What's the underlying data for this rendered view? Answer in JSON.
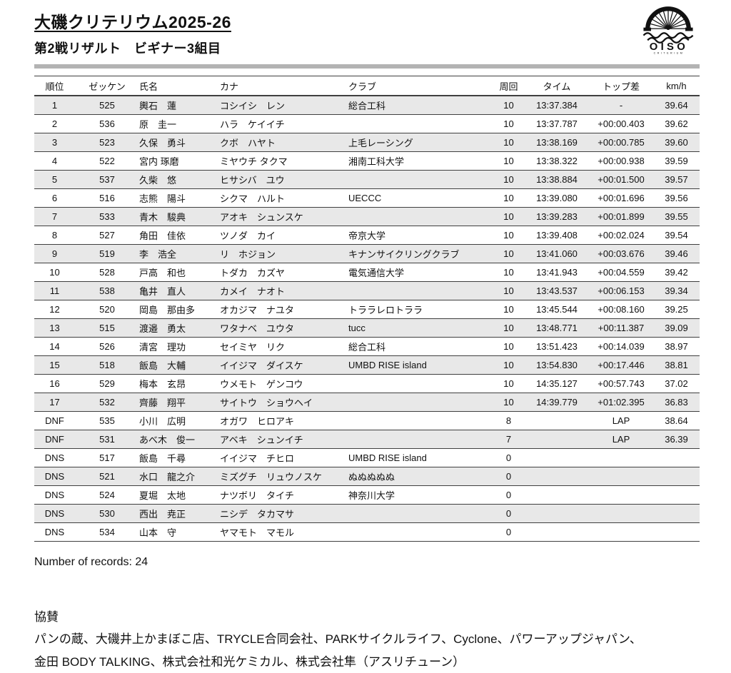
{
  "header": {
    "title": "大磯クリテリウム2025-26",
    "subtitle": "第2戦リザルト　ビギナー3組目"
  },
  "logo": {
    "name": "OISO",
    "subtext": "CRITERIUM"
  },
  "table": {
    "columns": [
      "順位",
      "ゼッケン",
      "氏名",
      "カナ",
      "クラブ",
      "周回",
      "タイム",
      "トップ差",
      "km/h"
    ],
    "rows": [
      {
        "rank": "1",
        "bib": "525",
        "name": "輿石　蓮",
        "kana": "コシイシ　レン",
        "club": "総合工科",
        "laps": "10",
        "time": "13:37.384",
        "gap": "-",
        "kmh": "39.64"
      },
      {
        "rank": "2",
        "bib": "536",
        "name": "原　圭一",
        "kana": "ハラ　ケイイチ",
        "club": "",
        "laps": "10",
        "time": "13:37.787",
        "gap": "+00:00.403",
        "kmh": "39.62"
      },
      {
        "rank": "3",
        "bib": "523",
        "name": "久保　勇斗",
        "kana": "クボ　ハヤト",
        "club": "上毛レーシング",
        "laps": "10",
        "time": "13:38.169",
        "gap": "+00:00.785",
        "kmh": "39.60"
      },
      {
        "rank": "4",
        "bib": "522",
        "name": "宮内 琢磨",
        "kana": "ミヤウチ タクマ",
        "club": "湘南工科大学",
        "laps": "10",
        "time": "13:38.322",
        "gap": "+00:00.938",
        "kmh": "39.59"
      },
      {
        "rank": "5",
        "bib": "537",
        "name": "久柴　悠",
        "kana": "ヒサシバ　ユウ",
        "club": "",
        "laps": "10",
        "time": "13:38.884",
        "gap": "+00:01.500",
        "kmh": "39.57"
      },
      {
        "rank": "6",
        "bib": "516",
        "name": "志熊　陽斗",
        "kana": "シクマ　ハルト",
        "club": "UECCC",
        "laps": "10",
        "time": "13:39.080",
        "gap": "+00:01.696",
        "kmh": "39.56"
      },
      {
        "rank": "7",
        "bib": "533",
        "name": "青木　駿典",
        "kana": "アオキ　シュンスケ",
        "club": "",
        "laps": "10",
        "time": "13:39.283",
        "gap": "+00:01.899",
        "kmh": "39.55"
      },
      {
        "rank": "8",
        "bib": "527",
        "name": "角田　佳依",
        "kana": "ツノダ　カイ",
        "club": "帝京大学",
        "laps": "10",
        "time": "13:39.408",
        "gap": "+00:02.024",
        "kmh": "39.54"
      },
      {
        "rank": "9",
        "bib": "519",
        "name": "李　浩全",
        "kana": "リ　ホジョン",
        "club": "キナンサイクリングクラブ",
        "laps": "10",
        "time": "13:41.060",
        "gap": "+00:03.676",
        "kmh": "39.46"
      },
      {
        "rank": "10",
        "bib": "528",
        "name": "戸高　和也",
        "kana": "トダカ　カズヤ",
        "club": "電気通信大学",
        "laps": "10",
        "time": "13:41.943",
        "gap": "+00:04.559",
        "kmh": "39.42"
      },
      {
        "rank": "11",
        "bib": "538",
        "name": "亀井　直人",
        "kana": "カメイ　ナオト",
        "club": "",
        "laps": "10",
        "time": "13:43.537",
        "gap": "+00:06.153",
        "kmh": "39.34"
      },
      {
        "rank": "12",
        "bib": "520",
        "name": "岡島　那由多",
        "kana": "オカジマ　ナユタ",
        "club": "トララレロトララ",
        "laps": "10",
        "time": "13:45.544",
        "gap": "+00:08.160",
        "kmh": "39.25"
      },
      {
        "rank": "13",
        "bib": "515",
        "name": "渡邉　勇太",
        "kana": "ワタナベ　ユウタ",
        "club": "tucc",
        "laps": "10",
        "time": "13:48.771",
        "gap": "+00:11.387",
        "kmh": "39.09"
      },
      {
        "rank": "14",
        "bib": "526",
        "name": "清宮　理功",
        "kana": "セイミヤ　リク",
        "club": "総合工科",
        "laps": "10",
        "time": "13:51.423",
        "gap": "+00:14.039",
        "kmh": "38.97"
      },
      {
        "rank": "15",
        "bib": "518",
        "name": "飯島　大輔",
        "kana": "イイジマ　ダイスケ",
        "club": "UMBD RISE island",
        "laps": "10",
        "time": "13:54.830",
        "gap": "+00:17.446",
        "kmh": "38.81"
      },
      {
        "rank": "16",
        "bib": "529",
        "name": "梅本　玄昂",
        "kana": "ウメモト　ゲンコウ",
        "club": "",
        "laps": "10",
        "time": "14:35.127",
        "gap": "+00:57.743",
        "kmh": "37.02"
      },
      {
        "rank": "17",
        "bib": "532",
        "name": "齊藤　翔平",
        "kana": "サイトウ　ショウヘイ",
        "club": "",
        "laps": "10",
        "time": "14:39.779",
        "gap": "+01:02.395",
        "kmh": "36.83"
      },
      {
        "rank": "DNF",
        "bib": "535",
        "name": "小川　広明",
        "kana": "オガワ　ヒロアキ",
        "club": "",
        "laps": "8",
        "time": "",
        "gap": "LAP",
        "kmh": "38.64"
      },
      {
        "rank": "DNF",
        "bib": "531",
        "name": "あべ木　俊一",
        "kana": "アベキ　シュンイチ",
        "club": "",
        "laps": "7",
        "time": "",
        "gap": "LAP",
        "kmh": "36.39"
      },
      {
        "rank": "DNS",
        "bib": "517",
        "name": "飯島　千尋",
        "kana": "イイジマ　チヒロ",
        "club": "UMBD RISE island",
        "laps": "0",
        "time": "",
        "gap": "",
        "kmh": ""
      },
      {
        "rank": "DNS",
        "bib": "521",
        "name": "水口　龍之介",
        "kana": "ミズグチ　リュウノスケ",
        "club": "ぬぬぬぬぬ",
        "laps": "0",
        "time": "",
        "gap": "",
        "kmh": ""
      },
      {
        "rank": "DNS",
        "bib": "524",
        "name": "夏堀　太地",
        "kana": "ナツボリ　タイチ",
        "club": "神奈川大学",
        "laps": "0",
        "time": "",
        "gap": "",
        "kmh": ""
      },
      {
        "rank": "DNS",
        "bib": "530",
        "name": "西出　尭正",
        "kana": "ニシデ　タカマサ",
        "club": "",
        "laps": "0",
        "time": "",
        "gap": "",
        "kmh": ""
      },
      {
        "rank": "DNS",
        "bib": "534",
        "name": "山本　守",
        "kana": "ヤマモト　マモル",
        "club": "",
        "laps": "0",
        "time": "",
        "gap": "",
        "kmh": ""
      }
    ]
  },
  "footer": {
    "records": "Number of records: 24",
    "sponsor_heading": "協賛",
    "sponsor_line1": "パンの蔵、大磯井上かまぼこ店、TRYCLE合同会社、PARKサイクルライフ、Cyclone、パワーアップジャパン、",
    "sponsor_line2": "金田 BODY TALKING、株式会社和光ケミカル、株式会社隼（アスリチューン）"
  },
  "colors": {
    "stripe": "#e8e8e8",
    "divider": "#b3b3b3",
    "border": "#3f3f3f",
    "text": "#111111"
  }
}
